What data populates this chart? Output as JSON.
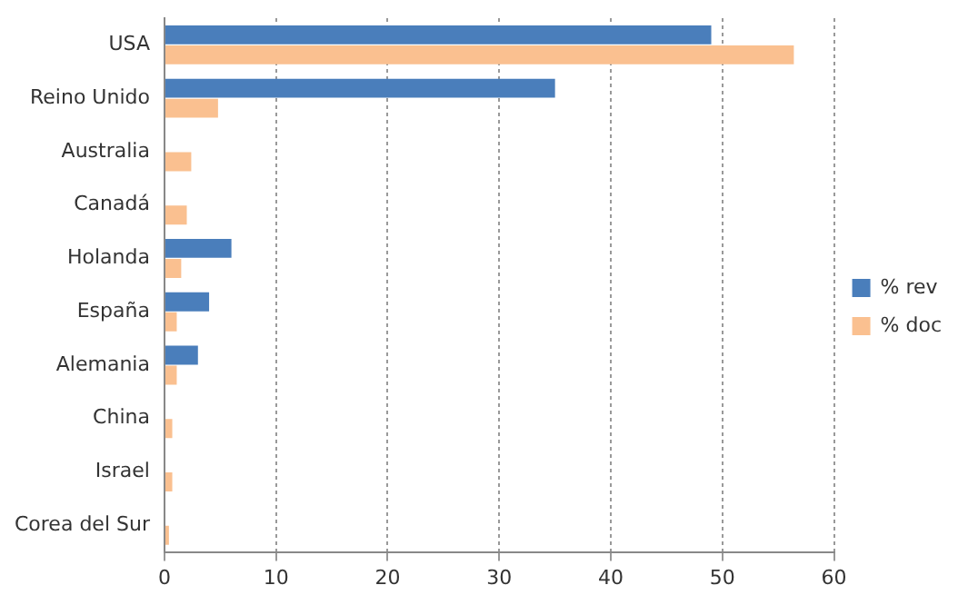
{
  "chart_data": {
    "type": "bar",
    "orientation": "horizontal",
    "categories": [
      "USA",
      "Reino Unido",
      "Australia",
      "Canadá",
      "Holanda",
      "España",
      "Alemania",
      "China",
      "Israel",
      "Corea del Sur"
    ],
    "series": [
      {
        "name": "% rev",
        "color": "#4a7ebb",
        "values": [
          49,
          35,
          0,
          0,
          6,
          4,
          3,
          0,
          0,
          0
        ]
      },
      {
        "name": "% doc",
        "color": "#fac090",
        "values": [
          56.4,
          4.8,
          2.4,
          2,
          1.5,
          1.1,
          1.1,
          0.7,
          0.7,
          0.4
        ]
      }
    ],
    "xlim": [
      0,
      60
    ],
    "xticks": [
      0,
      10,
      20,
      30,
      40,
      50,
      60
    ],
    "grid": "x",
    "legend": "right"
  }
}
